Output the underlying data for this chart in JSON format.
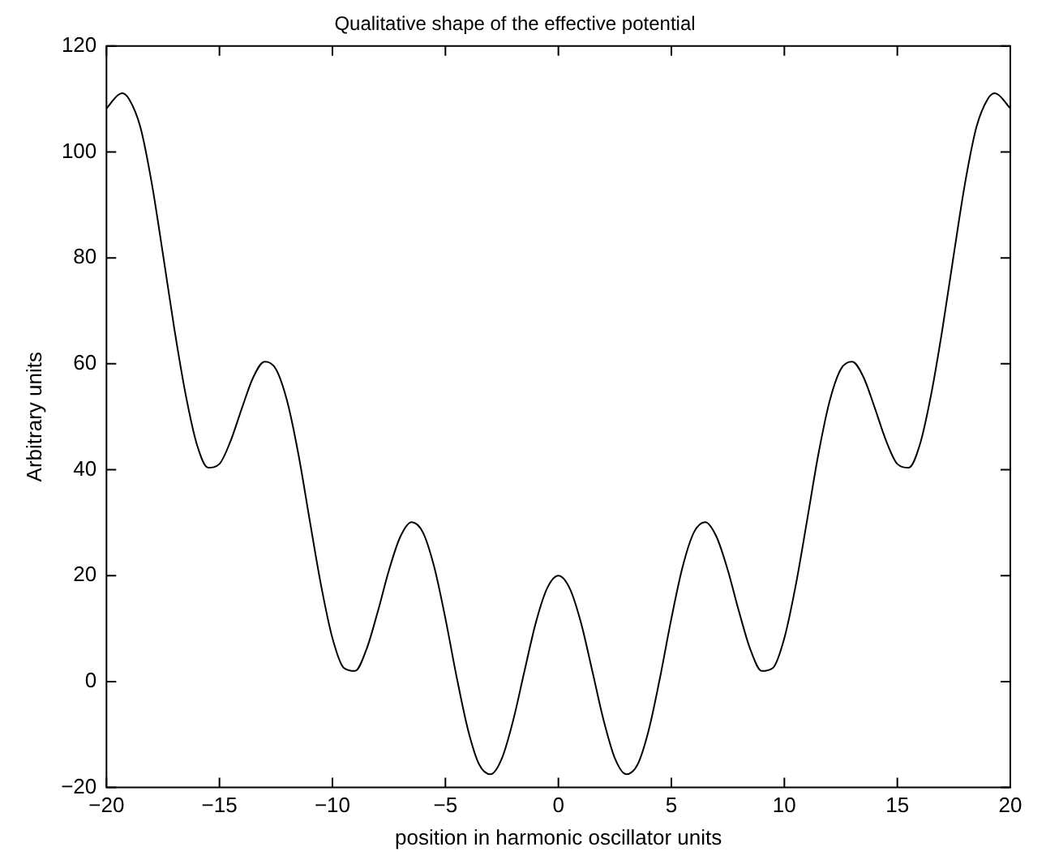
{
  "chart_data": {
    "type": "line",
    "title": "Qualitative shape of the effective potential",
    "xlabel": "position in harmonic oscillator units",
    "ylabel": "Arbitrary units",
    "x": [
      -20,
      -19.5,
      -19.3,
      -19,
      -18.5,
      -18,
      -17.5,
      -17,
      -16.5,
      -16,
      -15.5,
      -15,
      -14.5,
      -14,
      -13.5,
      -13,
      -12.5,
      -12,
      -11.5,
      -11,
      -10.5,
      -10,
      -9.5,
      -9,
      -8.5,
      -8,
      -7.5,
      -7,
      -6.5,
      -6,
      -5.5,
      -5,
      -4.5,
      -4,
      -3.5,
      -3,
      -2.5,
      -2,
      -1.5,
      -1,
      -0.5,
      0,
      0.5,
      1,
      1.5,
      2,
      2.5,
      3,
      3.5,
      4,
      4.5,
      5,
      5.5,
      6,
      6.5,
      7,
      7.5,
      8,
      8.5,
      9,
      9.5,
      10,
      10.5,
      11,
      11.5,
      12,
      12.5,
      13,
      13.5,
      14,
      14.5,
      15,
      15.5,
      16,
      16.5,
      17,
      17.5,
      18,
      18.5,
      19,
      19.3,
      19.5,
      20
    ],
    "series": [
      {
        "color": "#000000",
        "values": [
          108.2,
          110.7,
          111.1,
          110.0,
          104.7,
          94.2,
          80.7,
          66.7,
          54.3,
          44.8,
          40.4,
          41.1,
          45.5,
          51.7,
          57.5,
          60.4,
          59.0,
          52.9,
          42.8,
          30.3,
          18.1,
          8.2,
          2.6,
          2.0,
          6.0,
          13.1,
          21.0,
          27.3,
          30.1,
          28.2,
          21.7,
          11.9,
          0.8,
          -9.1,
          -15.7,
          -17.5,
          -14.5,
          -7.3,
          2.0,
          11.1,
          17.6,
          20,
          17.6,
          11.1,
          2.0,
          -7.3,
          -14.5,
          -17.5,
          -15.7,
          -9.1,
          0.8,
          11.9,
          21.7,
          28.2,
          30.1,
          27.3,
          21.0,
          13.1,
          6.0,
          2.0,
          2.6,
          8.2,
          18.1,
          30.3,
          42.8,
          52.9,
          59.0,
          60.4,
          57.5,
          51.7,
          45.5,
          41.1,
          40.4,
          44.8,
          54.3,
          66.7,
          80.7,
          94.2,
          104.7,
          110.0,
          111.1,
          110.7,
          108.2
        ]
      }
    ],
    "xlim": [
      -20,
      20
    ],
    "ylim": [
      -20,
      120
    ],
    "xticks": [
      -20,
      -15,
      -10,
      -5,
      0,
      5,
      10,
      15,
      20
    ],
    "yticks": [
      -20,
      0,
      20,
      40,
      60,
      80,
      100,
      120
    ],
    "grid": false,
    "legend": false,
    "marker": "none",
    "line_style": "solid"
  }
}
